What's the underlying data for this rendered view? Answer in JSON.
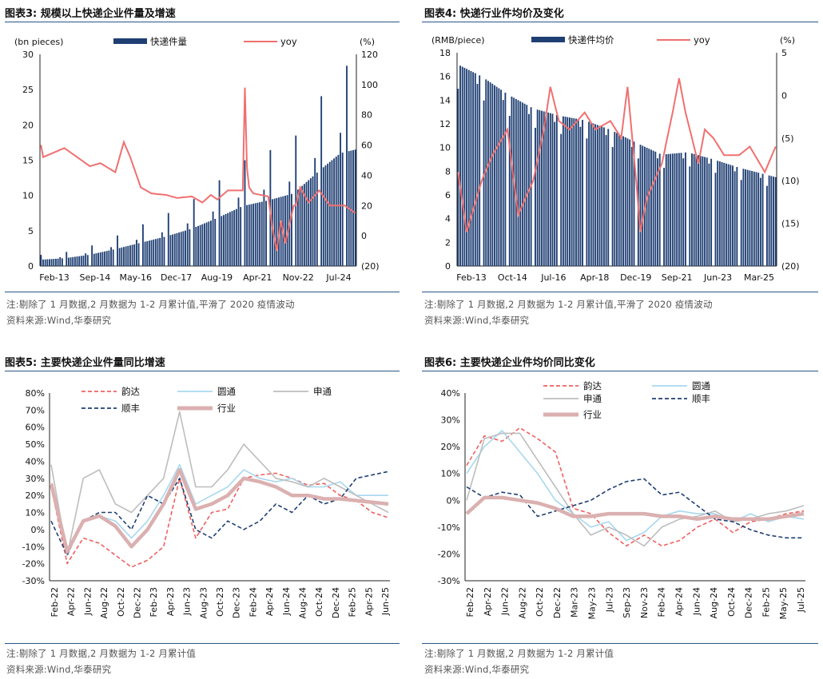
{
  "charts": [
    {
      "id": "c3",
      "title": "图表3:  规模以上快递企业件量及增速",
      "note": "注:剔除了 1 月数据,2 月数据为 1-2 月累计值,平滑了 2020 疫情波动",
      "source": "资料来源:Wind,华泰研究",
      "left_unit": "(bn pieces)",
      "right_unit": "(%)",
      "legend": {
        "bar": "快递件量",
        "line": "yoy"
      }
    },
    {
      "id": "c4",
      "title": "图表4:  快递行业件均价及变化",
      "note": "注:剔除了 1 月数据,2 月数据为 1-2 月累计值,平滑了 2020 疫情波动",
      "source": "资料来源:Wind,华泰研究",
      "left_unit": "(RMB/piece)",
      "right_unit": "(%)",
      "legend": {
        "bar": "快递件均价",
        "line": "yoy"
      }
    },
    {
      "id": "c5",
      "title": "图表5:  主要快递企业件量同比增速",
      "note": "注:剔除了 1 月数据,2 月数据为 1-2 月累计值",
      "source": "资料来源:Wind,华泰研究",
      "legend": [
        "韵达",
        "圆通",
        "申通",
        "顺丰",
        "行业"
      ]
    },
    {
      "id": "c6",
      "title": "图表6:  主要快递企业件均价同比变化",
      "note": "注:剔除了 1 月数据,2 月数据为 1-2 月累计值",
      "source": "资料来源:Wind,华泰研究",
      "legend": [
        "韵达",
        "圆通",
        "申通",
        "顺丰",
        "行业"
      ]
    }
  ],
  "chart_data": [
    {
      "type": "bar+line",
      "x_ticks": [
        "Feb-13",
        "Sep-14",
        "May-16",
        "Dec-17",
        "Aug-19",
        "Apr-21",
        "Nov-22",
        "Jul-24"
      ],
      "x_range": [
        "2013-02",
        "2025-06"
      ],
      "y_left": {
        "ticks": [
          "0",
          "5",
          "10",
          "15",
          "20",
          "25",
          "30"
        ],
        "lim": [
          0,
          30
        ]
      },
      "y_right": {
        "ticks": [
          "(20)",
          "0",
          "20",
          "40",
          "60",
          "80",
          "100",
          "120"
        ],
        "lim": [
          -20,
          120
        ]
      },
      "series": [
        {
          "name": "快递件量",
          "kind": "bar",
          "axis": "left",
          "color": "#1f3f73",
          "x": [
            "2013-02",
            "2014-01",
            "2015-01",
            "2016-01",
            "2017-01",
            "2018-01",
            "2019-01",
            "2020-01",
            "2021-01",
            "2022-01",
            "2023-01",
            "2024-01",
            "2024-11",
            "2025-06"
          ],
          "values": [
            0.9,
            1.1,
            1.6,
            2.4,
            3.3,
            4.2,
            5.3,
            6.8,
            8.5,
            9.3,
            10.3,
            13.5,
            16.0,
            16.5
          ]
        },
        {
          "name": "yoy",
          "kind": "line",
          "axis": "right",
          "color": "#f07070",
          "x": [
            "2013-02",
            "2013-03",
            "2014-01",
            "2014-06",
            "2015-01",
            "2015-06",
            "2016-01",
            "2016-05",
            "2016-08",
            "2017-01",
            "2017-06",
            "2018-01",
            "2018-06",
            "2019-01",
            "2019-06",
            "2019-10",
            "2020-01",
            "2020-06",
            "2021-01",
            "2021-02",
            "2021-03",
            "2021-04",
            "2021-06",
            "2022-01",
            "2022-03",
            "2022-05",
            "2022-07",
            "2022-09",
            "2023-01",
            "2023-02",
            "2023-04",
            "2023-08",
            "2024-01",
            "2024-06",
            "2025-01",
            "2025-06"
          ],
          "values": [
            60,
            52,
            58,
            53,
            46,
            48,
            42,
            62,
            52,
            32,
            28,
            27,
            25,
            26,
            22,
            27,
            24,
            30,
            30,
            98,
            45,
            32,
            28,
            26,
            5,
            -10,
            10,
            -5,
            20,
            20,
            32,
            22,
            30,
            20,
            20,
            15
          ]
        }
      ]
    },
    {
      "type": "bar+line",
      "x_ticks": [
        "Feb-13",
        "Oct-14",
        "Jul-16",
        "Apr-18",
        "Dec-19",
        "Sep-21",
        "Jun-23",
        "Mar-25"
      ],
      "x_range": [
        "2013-02",
        "2025-06"
      ],
      "y_left": {
        "ticks": [
          "0",
          "2",
          "4",
          "6",
          "8",
          "10",
          "12",
          "14",
          "16",
          "18"
        ],
        "lim": [
          0,
          18
        ]
      },
      "y_right": {
        "ticks": [
          "(20)",
          "(15)",
          "(10)",
          "(5)",
          "0",
          "5"
        ],
        "lim": [
          -20,
          5
        ]
      },
      "series": [
        {
          "name": "快递件均价",
          "kind": "bar",
          "axis": "left",
          "color": "#1f3f73",
          "x": [
            "2013-02",
            "2014-01",
            "2015-01",
            "2016-01",
            "2017-01",
            "2018-01",
            "2019-01",
            "2020-01",
            "2021-01",
            "2022-01",
            "2023-01",
            "2024-01",
            "2025-06"
          ],
          "values": [
            17.0,
            16.0,
            14.5,
            13.3,
            12.7,
            12.3,
            11.5,
            10.4,
            9.4,
            9.6,
            9.0,
            8.3,
            7.5
          ]
        },
        {
          "name": "yoy",
          "kind": "line",
          "axis": "right",
          "color": "#f07070",
          "x": [
            "2013-02",
            "2013-06",
            "2014-01",
            "2014-06",
            "2015-01",
            "2015-06",
            "2016-01",
            "2016-06",
            "2016-09",
            "2017-01",
            "2017-06",
            "2018-01",
            "2018-06",
            "2019-01",
            "2019-06",
            "2019-09",
            "2020-01",
            "2020-03",
            "2020-06",
            "2021-01",
            "2021-06",
            "2021-09",
            "2021-12",
            "2022-06",
            "2022-09",
            "2023-01",
            "2023-06",
            "2024-01",
            "2024-06",
            "2025-01",
            "2025-06"
          ],
          "values": [
            -9,
            -16,
            -10,
            -7,
            -4,
            -14,
            -10,
            -4,
            1,
            -3,
            -4,
            -2,
            -4,
            -3,
            -5,
            1,
            -10,
            -16,
            -12,
            -8,
            -2,
            2,
            -2,
            -8,
            -4,
            -5,
            -7,
            -7,
            -6,
            -9,
            -6
          ]
        }
      ]
    },
    {
      "type": "line",
      "x_ticks": [
        "Feb-22",
        "Apr-22",
        "Jun-22",
        "Aug-22",
        "Oct-22",
        "Dec-22",
        "Feb-23",
        "Apr-23",
        "Jun-23",
        "Aug-23",
        "Oct-23",
        "Dec-23",
        "Feb-24",
        "Apr-24",
        "Jun-24",
        "Aug-24",
        "Oct-24",
        "Dec-24",
        "Feb-25",
        "Apr-25",
        "Jun-25"
      ],
      "y_ticks": [
        "-30%",
        "-20%",
        "-10%",
        "0%",
        "10%",
        "20%",
        "30%",
        "40%",
        "50%",
        "60%",
        "70%",
        "80%"
      ],
      "ylim": [
        -30,
        80
      ],
      "series": [
        {
          "name": "韵达",
          "color": "#f06060",
          "dash": "dashed",
          "values": [
            25,
            -20,
            -5,
            -8,
            -15,
            -22,
            -18,
            -10,
            30,
            -5,
            10,
            12,
            30,
            32,
            33,
            30,
            26,
            27,
            20,
            17,
            10,
            7
          ]
        },
        {
          "name": "圆通",
          "color": "#a8d8ef",
          "dash": "solid",
          "values": [
            25,
            -15,
            5,
            8,
            5,
            -5,
            5,
            20,
            38,
            15,
            20,
            25,
            35,
            30,
            28,
            30,
            25,
            25,
            28,
            20,
            20,
            20
          ]
        },
        {
          "name": "申通",
          "color": "#bdbdbd",
          "dash": "solid",
          "values": [
            38,
            -15,
            30,
            35,
            15,
            10,
            20,
            30,
            69,
            25,
            25,
            35,
            50,
            40,
            30,
            28,
            25,
            30,
            25,
            20,
            15,
            10
          ]
        },
        {
          "name": "顺丰",
          "color": "#1f3f73",
          "dash": "dashed",
          "values": [
            5,
            -15,
            5,
            10,
            10,
            0,
            20,
            15,
            30,
            0,
            -5,
            5,
            0,
            5,
            15,
            10,
            20,
            15,
            18,
            30,
            32,
            34
          ]
        },
        {
          "name": "行业",
          "color": "#dbb0b0",
          "dash": "solid",
          "values": [
            27,
            -13,
            5,
            8,
            2,
            -10,
            0,
            15,
            35,
            12,
            15,
            20,
            30,
            28,
            25,
            20,
            20,
            18,
            18,
            17,
            16,
            15
          ]
        }
      ]
    },
    {
      "type": "line",
      "x_ticks": [
        "Feb-22",
        "Apr-22",
        "Jun-22",
        "Aug-22",
        "Oct-22",
        "Dec-22",
        "Mar-23",
        "May-23",
        "Jul-23",
        "Sep-23",
        "Nov-23",
        "Feb-24",
        "Apr-24",
        "Jun-24",
        "Aug-24",
        "Oct-24",
        "Dec-24",
        "Feb-25",
        "May-25",
        "Jul-25"
      ],
      "y_ticks": [
        "-30%",
        "-20%",
        "-10%",
        "0%",
        "10%",
        "20%",
        "30%",
        "40%"
      ],
      "ylim": [
        -30,
        40
      ],
      "series": [
        {
          "name": "韵达",
          "color": "#f06060",
          "dash": "dashed",
          "values": [
            13,
            24,
            22,
            27,
            23,
            18,
            -3,
            -5,
            -12,
            -17,
            -13,
            -17,
            -15,
            -10,
            -7,
            -12,
            -8,
            -7,
            -5,
            -4
          ]
        },
        {
          "name": "圆通",
          "color": "#a8d8ef",
          "dash": "solid",
          "values": [
            10,
            20,
            26,
            18,
            10,
            0,
            -5,
            -10,
            -8,
            -15,
            -12,
            -6,
            -4,
            -5,
            -5,
            -8,
            -5,
            -8,
            -6,
            -7
          ]
        },
        {
          "name": "申通",
          "color": "#bdbdbd",
          "dash": "solid",
          "values": [
            0,
            23,
            25,
            25,
            15,
            5,
            -5,
            -13,
            -10,
            -13,
            -17,
            -10,
            -7,
            -6,
            -4,
            -8,
            -7,
            -5,
            -4,
            -2
          ]
        },
        {
          "name": "顺丰",
          "color": "#1f3f73",
          "dash": "dashed",
          "values": [
            5,
            1,
            3,
            2,
            -6,
            -4,
            -2,
            0,
            4,
            7,
            8,
            2,
            3,
            -2,
            -7,
            -8,
            -11,
            -13,
            -14,
            -14
          ]
        },
        {
          "name": "行业",
          "color": "#dbb0b0",
          "dash": "solid",
          "values": [
            -5,
            1,
            1,
            0,
            -1,
            -3,
            -6,
            -6,
            -5,
            -5,
            -5,
            -6,
            -6,
            -7,
            -6,
            -7,
            -7,
            -7,
            -6,
            -5
          ]
        }
      ]
    }
  ]
}
